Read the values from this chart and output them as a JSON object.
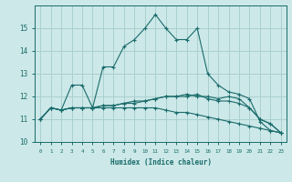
{
  "xlabel": "Humidex (Indice chaleur)",
  "background_color": "#cce8e8",
  "grid_color": "#aacfcf",
  "line_color": "#1a6b6b",
  "xlim": [
    -0.5,
    23.5
  ],
  "ylim": [
    10,
    16
  ],
  "yticks": [
    10,
    11,
    12,
    13,
    14,
    15
  ],
  "xticks": [
    0,
    1,
    2,
    3,
    4,
    5,
    6,
    7,
    8,
    9,
    10,
    11,
    12,
    13,
    14,
    15,
    16,
    17,
    18,
    19,
    20,
    21,
    22,
    23
  ],
  "series": [
    [
      11.0,
      11.5,
      11.4,
      12.5,
      12.5,
      11.5,
      13.3,
      13.3,
      14.2,
      14.5,
      15.0,
      15.6,
      15.0,
      14.5,
      14.5,
      15.0,
      13.0,
      12.5,
      12.2,
      12.1,
      11.9,
      10.9,
      10.5,
      10.4
    ],
    [
      11.0,
      11.5,
      11.4,
      11.5,
      11.5,
      11.5,
      11.6,
      11.6,
      11.7,
      11.8,
      11.8,
      11.9,
      12.0,
      12.0,
      12.1,
      12.0,
      12.0,
      11.9,
      12.0,
      11.9,
      11.5,
      11.0,
      10.8,
      10.4
    ],
    [
      11.0,
      11.5,
      11.4,
      11.5,
      11.5,
      11.5,
      11.6,
      11.6,
      11.7,
      11.7,
      11.8,
      11.9,
      12.0,
      12.0,
      12.0,
      12.1,
      11.9,
      11.8,
      11.8,
      11.7,
      11.5,
      11.0,
      10.8,
      10.4
    ],
    [
      11.0,
      11.5,
      11.4,
      11.5,
      11.5,
      11.5,
      11.5,
      11.5,
      11.5,
      11.5,
      11.5,
      11.5,
      11.4,
      11.3,
      11.3,
      11.2,
      11.1,
      11.0,
      10.9,
      10.8,
      10.7,
      10.6,
      10.5,
      10.4
    ]
  ]
}
